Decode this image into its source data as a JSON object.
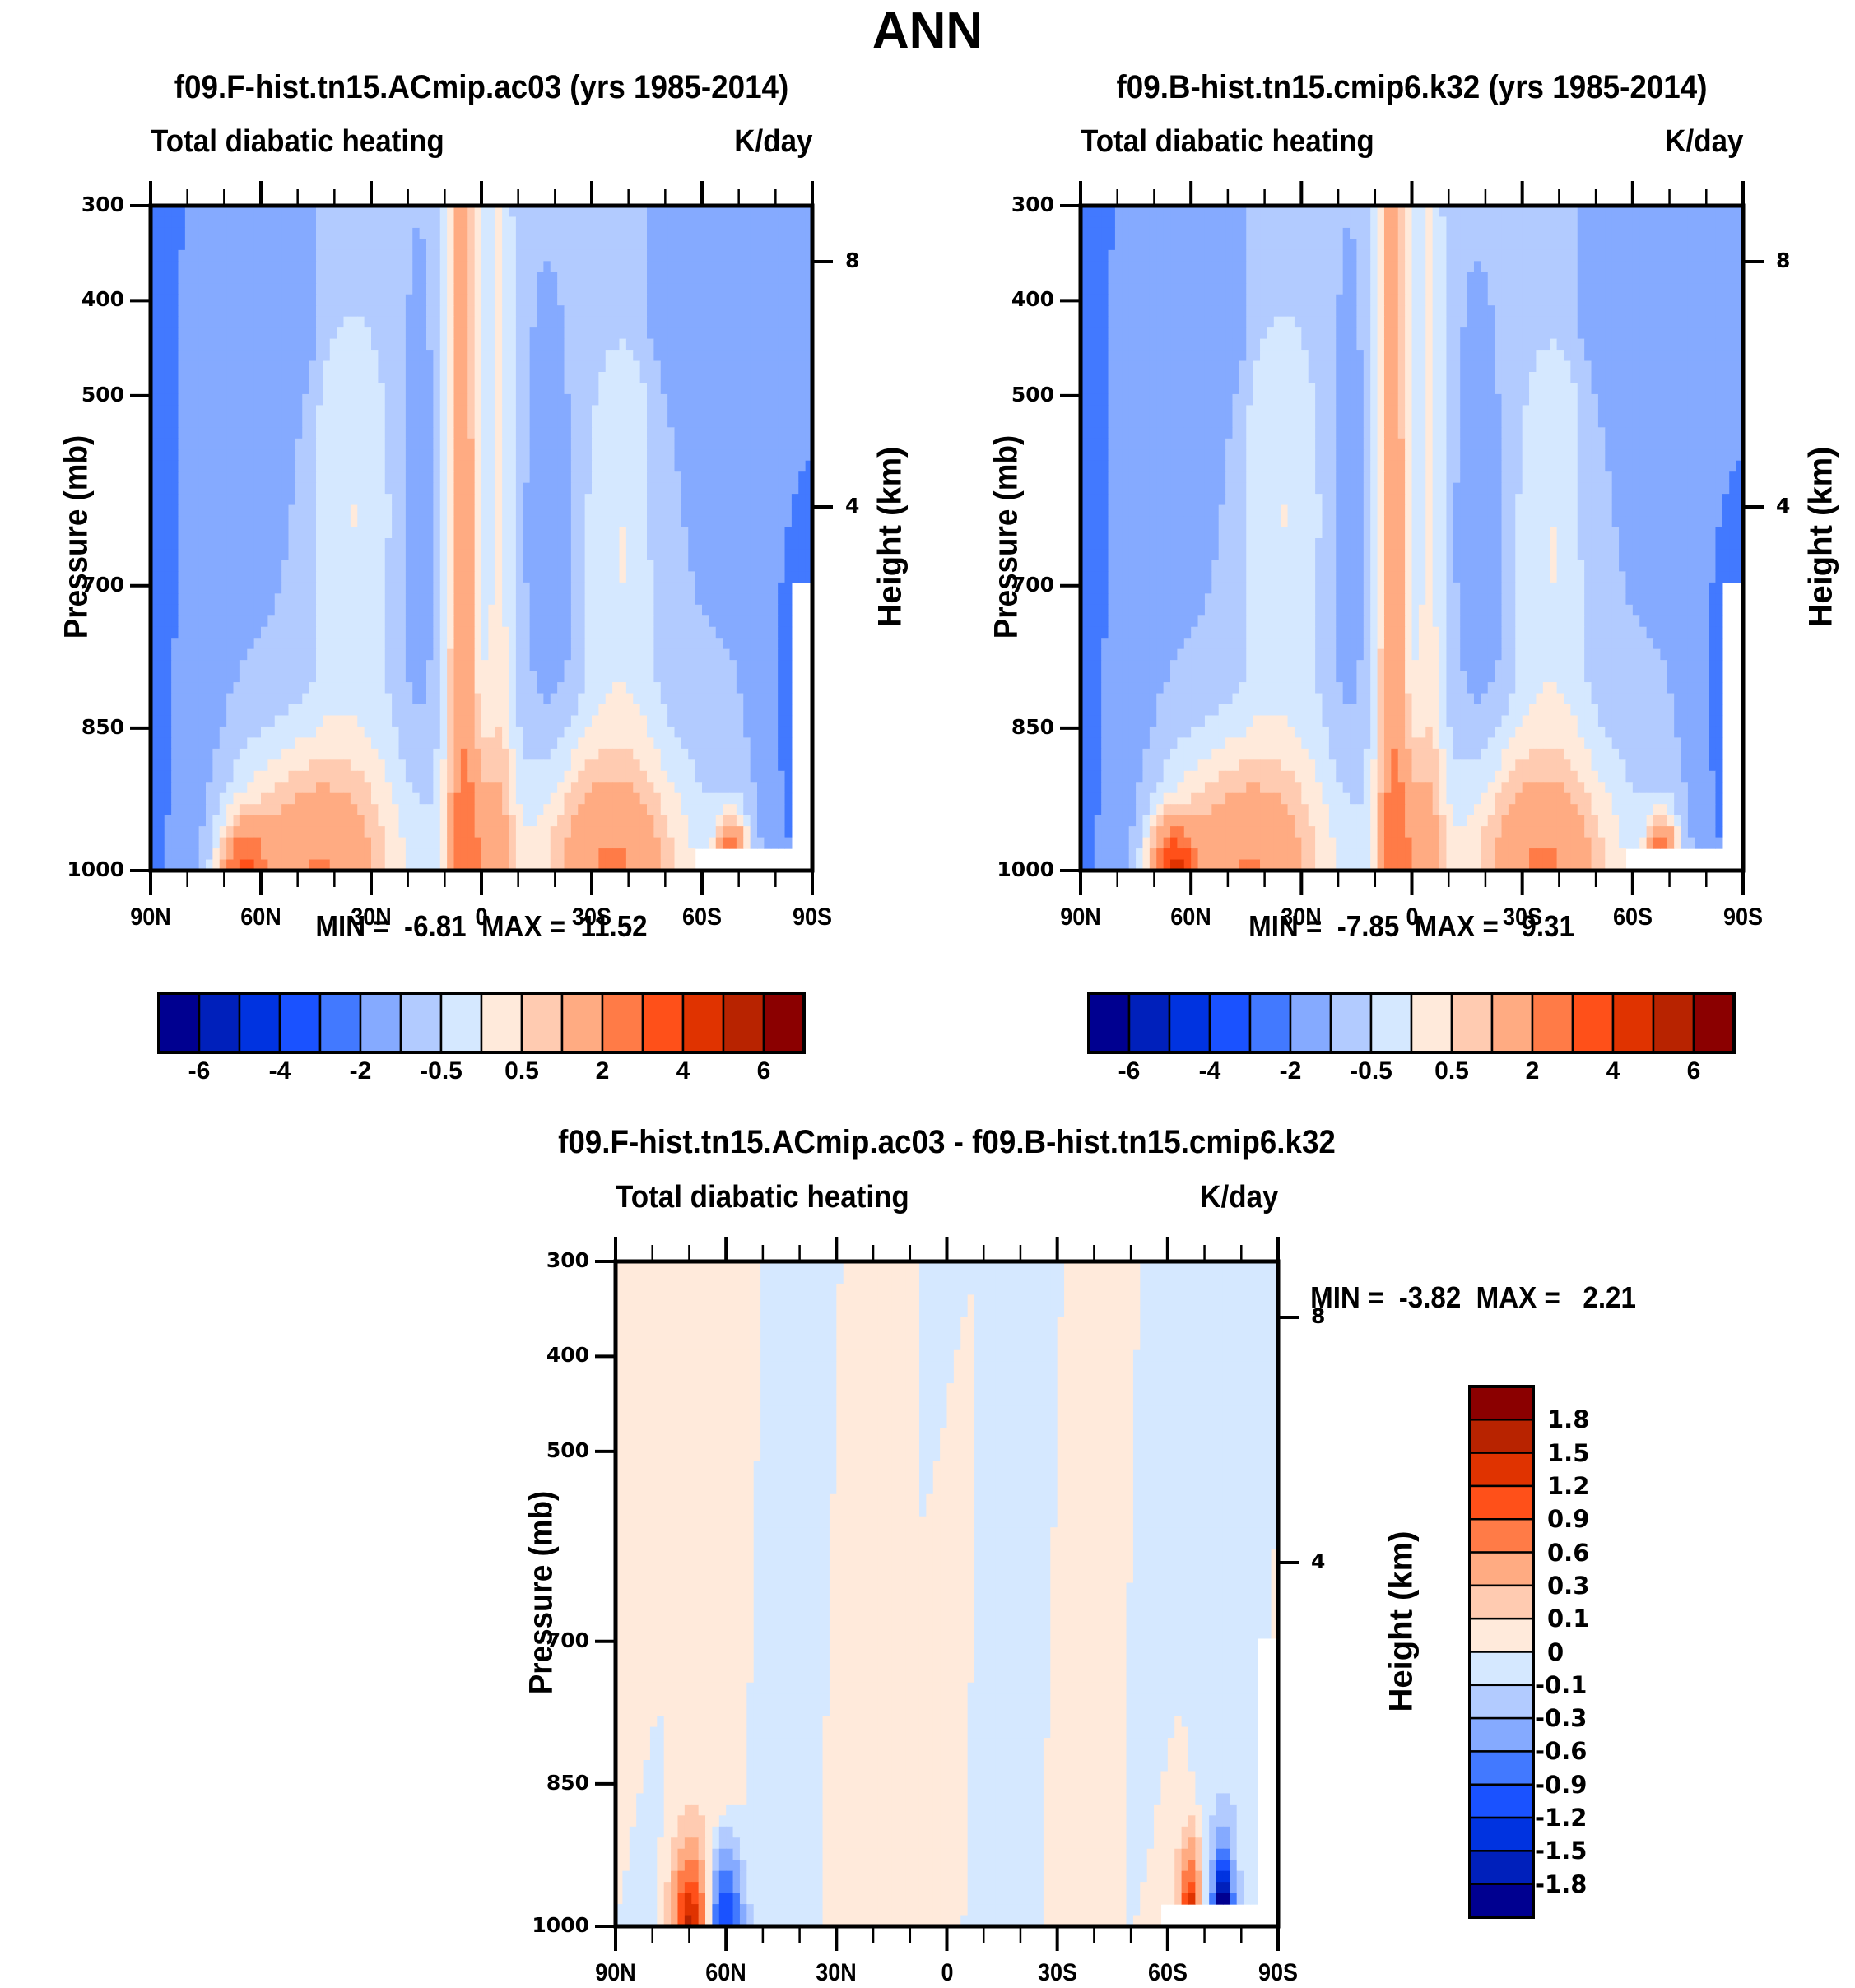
{
  "main_title": "ANN",
  "colors": {
    "levels16": [
      "#000090",
      "#0020bb",
      "#0033e0",
      "#1a52ff",
      "#4279ff",
      "#85aaff",
      "#b2cbff",
      "#d5e8ff",
      "#ffeadb",
      "#ffcbb1",
      "#ffab82",
      "#ff7b47",
      "#ff5019",
      "#e03300",
      "#b82300",
      "#8b0000"
    ],
    "axis": "#000000",
    "missing": "#ffffff"
  },
  "chart_data": [
    {
      "id": "model-a",
      "type": "heatmap",
      "title": "f09.F-hist.tn15.ACmip.ac03 (yrs 1985-2014)",
      "left_label": "Total diabatic heating",
      "right_label": "K/day",
      "xlabel": "",
      "ylabel": "Pressure (mb)",
      "y2label": "Height (km)",
      "x_ticks": [
        "90N",
        "60N",
        "30N",
        "0",
        "30S",
        "60S",
        "90S"
      ],
      "x_range": [
        90,
        -90
      ],
      "y_ticks": [
        300,
        400,
        500,
        700,
        850,
        1000
      ],
      "y_range": [
        300,
        1000
      ],
      "y2_ticks": [
        8,
        4
      ],
      "min_label": "MIN =  -6.81",
      "max_label": "MAX =  11.52",
      "min": -6.81,
      "max": 11.52,
      "colorbar": {
        "orientation": "horizontal",
        "levels": [
          -6,
          -5,
          -4,
          -3,
          -2,
          -1,
          -0.5,
          0,
          0.5,
          1,
          2,
          3,
          4,
          5,
          6
        ],
        "labels": [
          "-6",
          "-4",
          "-2",
          "-0.5",
          "0.5",
          "2",
          "4",
          "6"
        ]
      },
      "features": [
        {
          "desc": "equatorial heating column",
          "lat": 5,
          "value": 2
        },
        {
          "desc": "boundary layer heating NH midlat",
          "lat": 45,
          "value": 2
        },
        {
          "desc": "boundary layer heating SH midlat",
          "lat": -40,
          "value": 2
        },
        {
          "desc": "SH polar cooling",
          "lat": -85,
          "value": -3
        }
      ]
    },
    {
      "id": "model-b",
      "type": "heatmap",
      "title": "f09.B-hist.tn15.cmip6.k32 (yrs 1985-2014)",
      "left_label": "Total diabatic heating",
      "right_label": "K/day",
      "xlabel": "",
      "ylabel": "Pressure (mb)",
      "y2label": "Height (km)",
      "x_ticks": [
        "90N",
        "60N",
        "30N",
        "0",
        "30S",
        "60S",
        "90S"
      ],
      "x_range": [
        90,
        -90
      ],
      "y_ticks": [
        300,
        400,
        500,
        700,
        850,
        1000
      ],
      "y_range": [
        300,
        1000
      ],
      "y2_ticks": [
        8,
        4
      ],
      "min_label": "MIN =  -7.85",
      "max_label": "MAX =   9.31",
      "min": -7.85,
      "max": 9.31,
      "colorbar": {
        "orientation": "horizontal",
        "levels": [
          -6,
          -5,
          -4,
          -3,
          -2,
          -1,
          -0.5,
          0,
          0.5,
          1,
          2,
          3,
          4,
          5,
          6
        ],
        "labels": [
          "-6",
          "-4",
          "-2",
          "-0.5",
          "0.5",
          "2",
          "4",
          "6"
        ]
      }
    },
    {
      "id": "difference",
      "type": "heatmap",
      "title": "f09.F-hist.tn15.ACmip.ac03 - f09.B-hist.tn15.cmip6.k32",
      "left_label": "Total diabatic heating",
      "right_label": "K/day",
      "xlabel": "",
      "ylabel": "Pressure (mb)",
      "y2label": "Height (km)",
      "x_ticks": [
        "90N",
        "60N",
        "30N",
        "0",
        "30S",
        "60S",
        "90S"
      ],
      "x_range": [
        90,
        -90
      ],
      "y_ticks": [
        300,
        400,
        500,
        700,
        850,
        1000
      ],
      "y_range": [
        300,
        1000
      ],
      "y2_ticks": [
        8,
        4
      ],
      "min_label": "MIN =  -3.82",
      "max_label": "MAX =   2.21",
      "min": -3.82,
      "max": 2.21,
      "colorbar": {
        "orientation": "vertical",
        "levels": [
          -1.8,
          -1.5,
          -1.2,
          -0.9,
          -0.6,
          -0.3,
          -0.1,
          0,
          0.1,
          0.3,
          0.6,
          0.9,
          1.2,
          1.5,
          1.8
        ],
        "labels": [
          "1.8",
          "1.5",
          "1.2",
          "0.9",
          "0.6",
          "0.3",
          "0.1",
          "0",
          "-0.1",
          "-0.3",
          "-0.6",
          "-0.9",
          "-1.2",
          "-1.5",
          "-1.8"
        ]
      }
    }
  ]
}
